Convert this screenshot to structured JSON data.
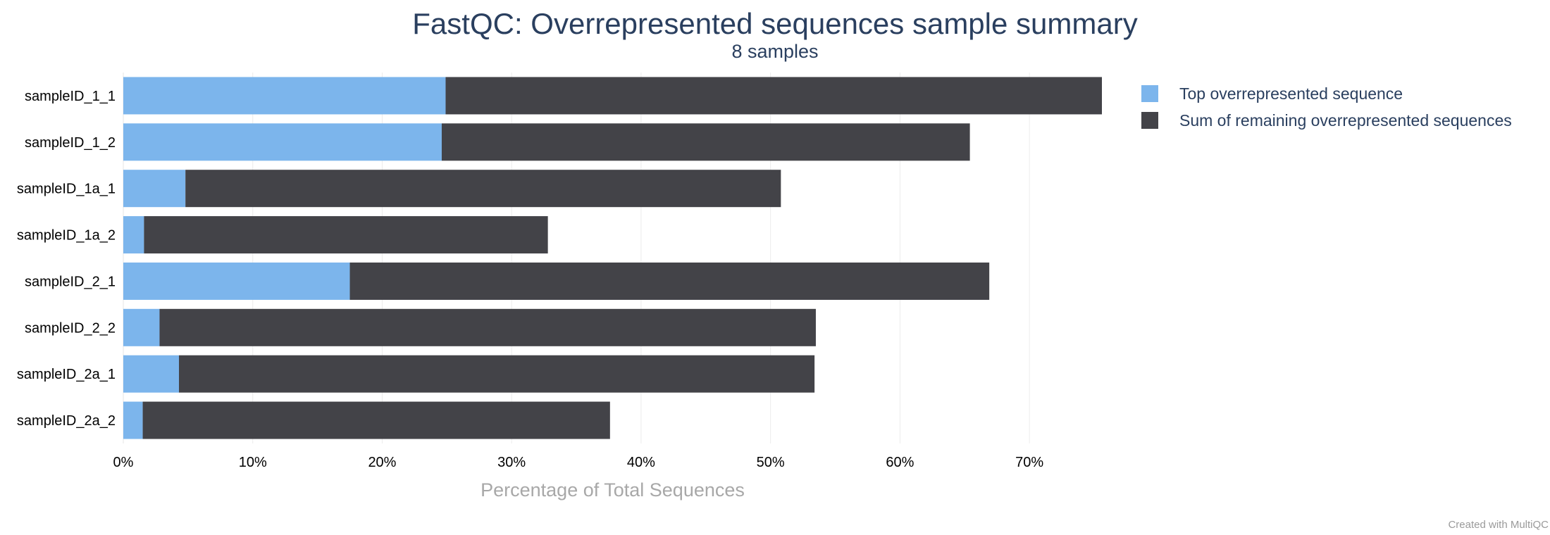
{
  "chart_data": {
    "type": "bar",
    "orientation": "horizontal",
    "stacked": true,
    "title": "FastQC: Overrepresented sequences sample summary",
    "subtitle": "8 samples",
    "xlabel": "Percentage of Total Sequences",
    "ylabel": "",
    "xlim": [
      0,
      75.6
    ],
    "xticks": [
      0,
      10,
      20,
      30,
      40,
      50,
      60,
      70
    ],
    "tick_suffix": "%",
    "grid": true,
    "legend_position": "top-right",
    "categories": [
      "sampleID_1_1",
      "sampleID_1_2",
      "sampleID_1a_1",
      "sampleID_1a_2",
      "sampleID_2_1",
      "sampleID_2_2",
      "sampleID_2a_1",
      "sampleID_2a_2"
    ],
    "series": [
      {
        "name": "Top overrepresented sequence",
        "color": "#7cb5ec",
        "values": [
          24.9,
          24.6,
          4.8,
          1.6,
          17.5,
          2.8,
          4.3,
          1.5
        ]
      },
      {
        "name": "Sum of remaining overrepresented sequences",
        "color": "#434348",
        "values": [
          50.7,
          40.8,
          46.0,
          31.2,
          49.4,
          50.7,
          49.1,
          36.1
        ]
      }
    ]
  },
  "credit": "Created with MultiQC"
}
